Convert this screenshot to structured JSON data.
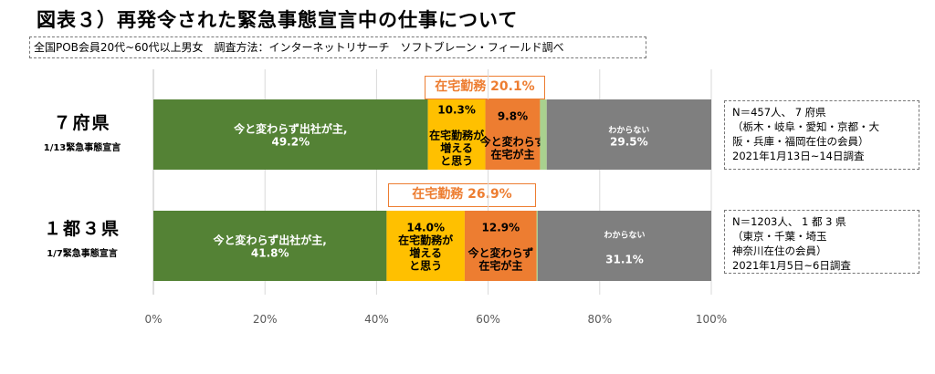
{
  "title": "図表３）再発令された緊急事態宣言中の仕事について",
  "subtitle": "全国POB会員20代~60代以上男女　調査方法：インターネットリサーチ　ソフトブレーン・フィールド調べ",
  "rows": [
    {
      "label": "７府県",
      "sublabel": "1/13緊急事態宣言",
      "callout": "在宅勤務 20.1%",
      "note": "N＝457人、 7 府県\n（栃木・岐阜・愛知・京都・大\n阪・兵庫・福岡在住の会員）\n2021年1月13日~14日調査",
      "segments": [
        {
          "lines": [
            "今と変わらず出社が主,",
            "49.2%"
          ]
        },
        {
          "lines": [
            "10.3%",
            "",
            "在宅勤務が",
            "増える",
            "と思う"
          ]
        },
        {
          "lines": [
            "9.8%",
            "",
            "今と変わらず",
            "在宅が主"
          ]
        },
        {
          "lines": []
        },
        {
          "lines": [
            "わからない",
            "29.5%"
          ]
        }
      ]
    },
    {
      "label": "１都３県",
      "sublabel": "1/7緊急事態宣言",
      "callout": "在宅勤務 26.9%",
      "note": "N＝1203人、 1 都 3 県\n（東京・千葉・埼玉\n神奈川在住の会員）\n2021年1月5日~6日調査",
      "segments": [
        {
          "lines": [
            "今と変わらず出社が主,",
            "41.8%"
          ]
        },
        {
          "lines": [
            "14.0%",
            "在宅勤務が",
            "増える",
            "と思う"
          ]
        },
        {
          "lines": [
            "12.9%",
            "",
            "今と変わらず",
            "在宅が主"
          ]
        },
        {
          "lines": []
        },
        {
          "lines": [
            "わからない",
            "",
            "31.1%"
          ]
        }
      ]
    }
  ],
  "chart_data": {
    "type": "bar",
    "orientation": "horizontal",
    "stacked": true,
    "categories": [
      "７府県",
      "１都３県"
    ],
    "series": [
      {
        "name": "今と変わらず出社が主",
        "color": "#548235",
        "values": [
          49.2,
          41.8
        ]
      },
      {
        "name": "在宅勤務が増えると思う",
        "color": "#FFC000",
        "values": [
          10.3,
          14.0
        ]
      },
      {
        "name": "今と変わらず在宅が主",
        "color": "#ED7D31",
        "values": [
          9.8,
          12.9
        ]
      },
      {
        "color": "#A9D18E",
        "values": [
          1.2,
          0.2
        ]
      },
      {
        "name": "わからない",
        "color": "#7F7F7F",
        "values": [
          29.5,
          31.1
        ]
      }
    ],
    "xlim": [
      0,
      100
    ],
    "xticks": [
      "0%",
      "20%",
      "40%",
      "60%",
      "80%",
      "100%"
    ],
    "grid": true
  }
}
